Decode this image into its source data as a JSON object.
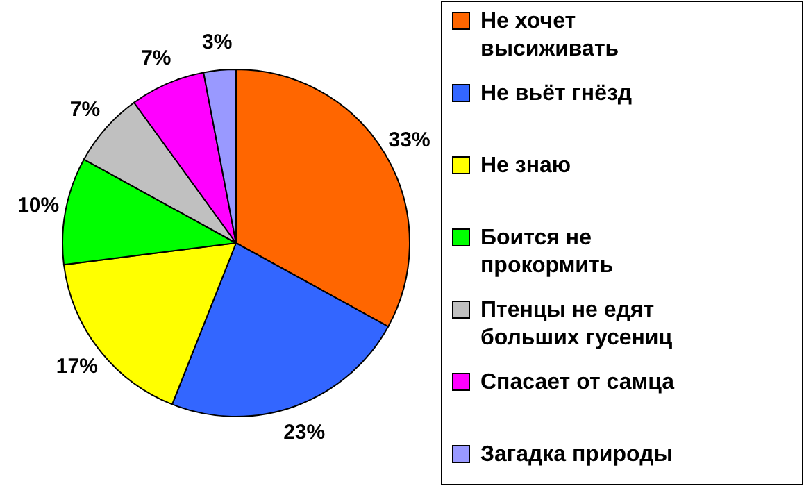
{
  "chart_data": {
    "type": "pie",
    "categories": [
      "Не хочет высиживать",
      "Не вьёт гнёзд",
      "Не знаю",
      "Боится не прокормить",
      "Птенцы не едят больших гусениц",
      "Спасает от самца",
      "Загадка природы"
    ],
    "values": [
      33,
      23,
      17,
      10,
      7,
      7,
      3
    ],
    "colors": [
      "#ff6600",
      "#3366ff",
      "#ffff00",
      "#00ff00",
      "#c0c0c0",
      "#ff00ff",
      "#9999ff"
    ],
    "value_labels": [
      "33%",
      "23%",
      "17%",
      "10%",
      "7%",
      "7%",
      "3%"
    ],
    "legend": "right"
  }
}
